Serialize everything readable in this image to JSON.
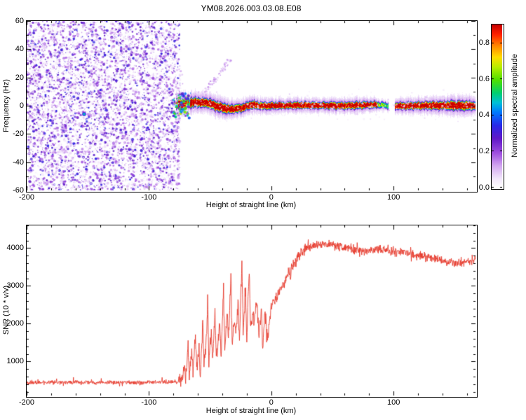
{
  "title": "YM08.2026.003.03.08.E08",
  "chart_data": [
    {
      "type": "heatmap",
      "name": "spectrogram",
      "xlabel": "Height of straight line (km)",
      "ylabel": "Frequency (Hz)",
      "xlim": [
        -200,
        167
      ],
      "ylim": [
        -60,
        60
      ],
      "xticks": [
        -200,
        -100,
        0,
        100
      ],
      "xminor_step": 20,
      "yticks": [
        -60,
        -40,
        -20,
        0,
        20,
        40,
        60
      ],
      "yminor_step": 10,
      "grid": false,
      "colorbar": {
        "label": "Normalized spectral amplitude",
        "tick_labels": [
          "0.0",
          "0.2",
          "0.4",
          "0.6",
          "0.8"
        ],
        "tick_values": [
          0,
          0.2,
          0.4,
          0.6,
          0.8
        ],
        "range": [
          0,
          0.9
        ],
        "colormap_stops": [
          {
            "pos": 0.0,
            "color": "#ffffff"
          },
          {
            "pos": 0.05,
            "color": "#f3e8fb"
          },
          {
            "pos": 0.13,
            "color": "#d3a8f0"
          },
          {
            "pos": 0.21,
            "color": "#a050e0"
          },
          {
            "pos": 0.3,
            "color": "#6018c8"
          },
          {
            "pos": 0.38,
            "color": "#2828e8"
          },
          {
            "pos": 0.46,
            "color": "#0078ff"
          },
          {
            "pos": 0.52,
            "color": "#00c0d8"
          },
          {
            "pos": 0.58,
            "color": "#00d070"
          },
          {
            "pos": 0.66,
            "color": "#50e000"
          },
          {
            "pos": 0.74,
            "color": "#b8ee00"
          },
          {
            "pos": 0.8,
            "color": "#ffdd00"
          },
          {
            "pos": 0.87,
            "color": "#ff8800"
          },
          {
            "pos": 0.94,
            "color": "#ff2200"
          },
          {
            "pos": 1.0,
            "color": "#c80000"
          }
        ]
      },
      "noise_region": {
        "x_range": [
          -200,
          -74.5
        ],
        "speckle_count": 8200,
        "max_amplitude": 0.34,
        "description": "broadband purple speckle noise across all frequencies before signal acquisition"
      },
      "signal_band": {
        "x_range": [
          -78,
          167
        ],
        "center_frequency_hz": 0,
        "peak_amplitude": 0.9,
        "center_keypoints": [
          [
            -78,
            1.0
          ],
          [
            -62,
            2.4
          ],
          [
            -52,
            2.0
          ],
          [
            -44,
            -0.6
          ],
          [
            -34,
            -2.6
          ],
          [
            -24,
            -1.6
          ],
          [
            -16,
            0.8
          ],
          [
            -8,
            -0.2
          ],
          [
            20,
            0.3
          ],
          [
            60,
            0.0
          ],
          [
            85,
            0.7
          ],
          [
            100,
            -0.3
          ],
          [
            130,
            0.2
          ],
          [
            167,
            0.0
          ]
        ],
        "halfwidth_keypoints": [
          [
            -78,
            3.6
          ],
          [
            -70,
            3.0
          ],
          [
            -60,
            2.8
          ],
          [
            -45,
            3.0
          ],
          [
            -30,
            2.6
          ],
          [
            -15,
            2.4
          ],
          [
            0,
            2.2
          ],
          [
            30,
            2.0
          ],
          [
            60,
            2.2
          ],
          [
            85,
            2.0
          ],
          [
            100,
            2.1
          ],
          [
            130,
            2.4
          ],
          [
            150,
            2.9
          ],
          [
            167,
            2.6
          ]
        ],
        "dim_km": [
          [
            87,
            96
          ]
        ],
        "gaps_km": [
          [
            96,
            101
          ]
        ]
      },
      "features": {
        "blue_blob": {
          "x_km": -153,
          "freq_hz": -6
        },
        "diagonal_streak": {
          "from_km_hz": [
            -57,
            6
          ],
          "to_km_hz": [
            -34,
            33
          ],
          "count": 80
        },
        "onset_splash": {
          "x_range": [
            -80,
            -66
          ],
          "f_range": [
            -9,
            9
          ],
          "count": 70
        },
        "onset_plume": {
          "x_range": [
            -79,
            -72
          ],
          "f_range": [
            -14,
            26
          ],
          "count": 50
        },
        "ambient_fringe": {
          "x_range": [
            -74,
            167
          ],
          "sigma_hz": 4.5,
          "count": 330
        }
      }
    },
    {
      "type": "line",
      "name": "snr",
      "xlabel": "Height of straight line (km)",
      "ylabel": "SNR (10 * v/v)",
      "xlim": [
        -200,
        167
      ],
      "ylim": [
        100,
        4600
      ],
      "xticks": [
        -200,
        -100,
        0,
        100
      ],
      "xminor_step": 20,
      "yticks": [
        1000,
        2000,
        3000,
        4000
      ],
      "yminor_step": 200,
      "line_color": "#e63b2e",
      "series": [
        {
          "name": "SNR",
          "sample_step_km": 0.25,
          "keypoints": [
            [
              -200,
              450
            ],
            [
              -150,
              445
            ],
            [
              -120,
              440
            ],
            [
              -90,
              450
            ],
            [
              -76,
              455
            ],
            [
              -73,
              480
            ],
            [
              -71,
              900
            ],
            [
              -70,
              520
            ],
            [
              -68,
              1450
            ],
            [
              -67,
              600
            ],
            [
              -65,
              1200
            ],
            [
              -64,
              700
            ],
            [
              -62,
              1750
            ],
            [
              -61,
              800
            ],
            [
              -59,
              1300
            ],
            [
              -58,
              650
            ],
            [
              -56,
              2100
            ],
            [
              -55,
              900
            ],
            [
              -53,
              1500
            ],
            [
              -52,
              2650
            ],
            [
              -51,
              1000
            ],
            [
              -49,
              1900
            ],
            [
              -48,
              1100
            ],
            [
              -46,
              2300
            ],
            [
              -45,
              1000
            ],
            [
              -43,
              1700
            ],
            [
              -42,
              2050
            ],
            [
              -41,
              1150
            ],
            [
              -39,
              2950
            ],
            [
              -38,
              1300
            ],
            [
              -36,
              2400
            ],
            [
              -35,
              1500
            ],
            [
              -33,
              3350
            ],
            [
              -32,
              1400
            ],
            [
              -30,
              2100
            ],
            [
              -29,
              1700
            ],
            [
              -27,
              2500
            ],
            [
              -26,
              1500
            ],
            [
              -24,
              3700
            ],
            [
              -23,
              1900
            ],
            [
              -21,
              2700
            ],
            [
              -20,
              1600
            ],
            [
              -18,
              3450
            ],
            [
              -17,
              1800
            ],
            [
              -15,
              2300
            ],
            [
              -14,
              2000
            ],
            [
              -12,
              2600
            ],
            [
              -10,
              1700
            ],
            [
              -8,
              2400
            ],
            [
              -7,
              1300
            ],
            [
              -5,
              2300
            ],
            [
              -3,
              1600
            ],
            [
              -1,
              2200
            ],
            [
              0,
              2450
            ],
            [
              3,
              2650
            ],
            [
              6,
              2850
            ],
            [
              9,
              3000
            ],
            [
              12,
              3200
            ],
            [
              15,
              3350
            ],
            [
              18,
              3550
            ],
            [
              21,
              3700
            ],
            [
              24,
              3850
            ],
            [
              27,
              3950
            ],
            [
              30,
              4000
            ],
            [
              35,
              4050
            ],
            [
              42,
              4100
            ],
            [
              50,
              4080
            ],
            [
              58,
              4020
            ],
            [
              66,
              3980
            ],
            [
              74,
              3940
            ],
            [
              82,
              3900
            ],
            [
              90,
              3960
            ],
            [
              98,
              3920
            ],
            [
              106,
              3880
            ],
            [
              114,
              3840
            ],
            [
              122,
              3800
            ],
            [
              130,
              3740
            ],
            [
              138,
              3690
            ],
            [
              146,
              3640
            ],
            [
              152,
              3600
            ],
            [
              158,
              3640
            ],
            [
              163,
              3690
            ],
            [
              167,
              3710
            ]
          ],
          "noise_segments": [
            [
              -200,
              -76,
              65
            ],
            [
              -76,
              -2,
              260
            ],
            [
              -2,
              30,
              190
            ],
            [
              30,
              167.5,
              145
            ]
          ]
        }
      ]
    }
  ]
}
